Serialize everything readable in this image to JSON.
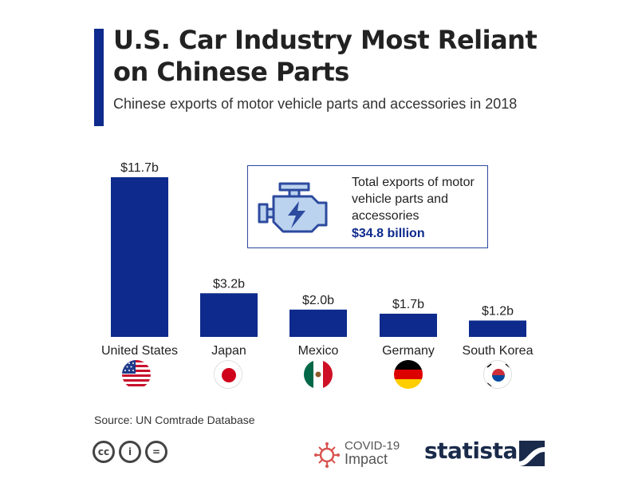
{
  "header": {
    "title": "U.S. Car Industry Most Reliant on Chinese Parts",
    "subtitle": "Chinese exports of motor vehicle parts and accessories in 2018"
  },
  "info_box": {
    "icon": "engine-icon",
    "text": "Total exports of motor vehicle parts and accessories",
    "value": "$34.8 billion"
  },
  "chart_data": {
    "type": "bar",
    "title": "U.S. Car Industry Most Reliant on Chinese Parts",
    "subtitle": "Chinese exports of motor vehicle parts and accessories in 2018",
    "categories": [
      "United States",
      "Japan",
      "Mexico",
      "Germany",
      "South Korea"
    ],
    "values": [
      11.7,
      3.2,
      2.0,
      1.7,
      1.2
    ],
    "data_labels": [
      "$11.7b",
      "$3.2b",
      "$2.0b",
      "$1.7b",
      "$1.2b"
    ],
    "unit": "billion USD",
    "flags": [
      "us-flag-icon",
      "japan-flag-icon",
      "mexico-flag-icon",
      "germany-flag-icon",
      "south-korea-flag-icon"
    ],
    "bar_color": "#0d2a8c",
    "ylim": [
      0,
      11.7
    ],
    "grid": false
  },
  "footer": {
    "source": "Source: UN Comtrade Database",
    "license_icons": [
      "cc-icon",
      "attribution-icon",
      "no-derivatives-icon"
    ],
    "license_symbols": [
      "cc",
      "i",
      "="
    ],
    "covid_line1": "COVID-19",
    "covid_line2": "Impact",
    "brand": "statista"
  },
  "colors": {
    "accent": "#0d2a8c",
    "text": "#222222",
    "covid": "#d9534f"
  }
}
